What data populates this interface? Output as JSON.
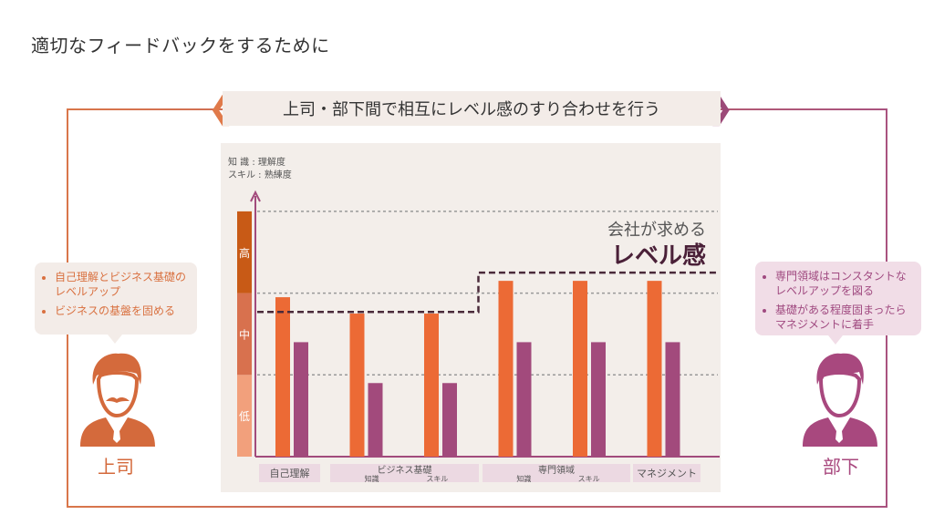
{
  "title": "適切なフィードバックをするために",
  "banner": "上司・部下間で相互にレベル感のすり合わせを行う",
  "boss": {
    "label": "上司",
    "bullets": [
      "自己理解とビジネス基礎のレベルアップ",
      "ビジネスの基盤を固める"
    ],
    "color": "#d46a3c"
  },
  "subordinate": {
    "label": "部下",
    "bullets": [
      "専門領域はコンスタントなレベルアップを図る",
      "基礎がある程度固まったらマネジメントに着手"
    ],
    "color": "#a8487e"
  },
  "chart_data": {
    "type": "bar",
    "legend": [
      "知 識 : 理解度",
      "スキル : 熟練度"
    ],
    "y_levels": [
      "低",
      "中",
      "高"
    ],
    "ylim": [
      0,
      3
    ],
    "grid": true,
    "categories": [
      "自己理解",
      "ビジネス基礎 知識",
      "ビジネス基礎 スキル",
      "専門領域 知識",
      "専門領域 スキル",
      "マネジメント"
    ],
    "category_groups": [
      {
        "label": "自己理解",
        "subs": []
      },
      {
        "label": "ビジネス基礎",
        "subs": [
          "知識",
          "スキル"
        ]
      },
      {
        "label": "専門領域",
        "subs": [
          "知識",
          "スキル"
        ]
      },
      {
        "label": "マネジメント",
        "subs": []
      }
    ],
    "series": [
      {
        "values": [
          1.95,
          1.75,
          1.75,
          2.15,
          2.15,
          2.15
        ],
        "color": "#ec6a35"
      },
      {
        "values": [
          1.4,
          0.9,
          0.9,
          1.4,
          1.4,
          1.4
        ],
        "color": "#a24a7c"
      }
    ],
    "company_level": {
      "label_line1": "会社が求める",
      "label_line2": "レベル感",
      "values": [
        1.77,
        1.77,
        1.77,
        2.25,
        2.25,
        2.25
      ]
    }
  }
}
